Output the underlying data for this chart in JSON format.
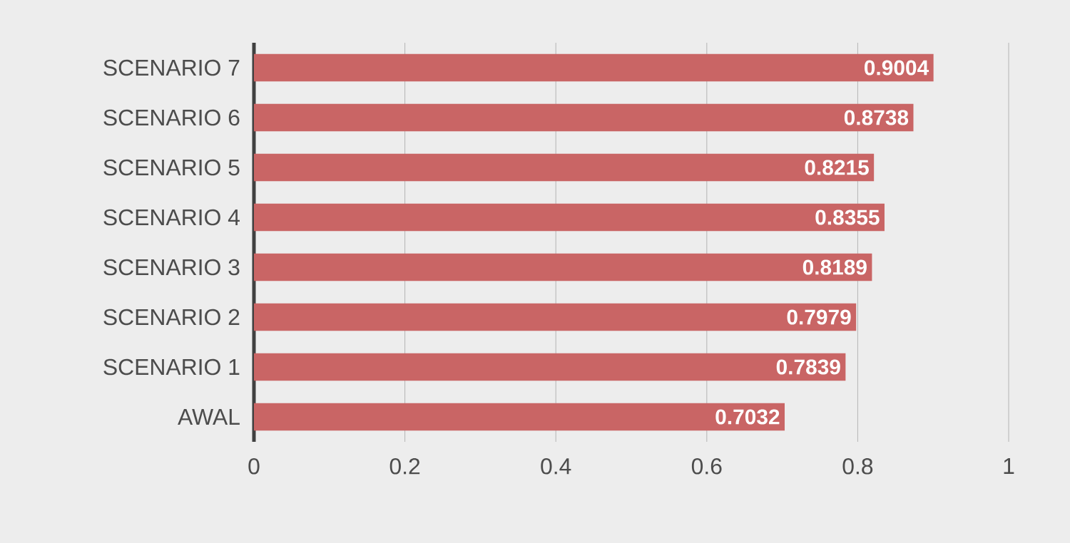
{
  "chart_data": {
    "type": "bar",
    "orientation": "horizontal",
    "categories": [
      "SCENARIO 7",
      "SCENARIO 6",
      "SCENARIO 5",
      "SCENARIO 4",
      "SCENARIO 3",
      "SCENARIO 2",
      "SCENARIO 1",
      "AWAL"
    ],
    "values": [
      0.9004,
      0.8738,
      0.8215,
      0.8355,
      0.8189,
      0.7979,
      0.7839,
      0.7032
    ],
    "color": "#c96565",
    "xlim": [
      0,
      1
    ],
    "xticks": [
      0,
      0.2,
      0.4,
      0.6,
      0.8,
      1
    ],
    "grid": "x",
    "data_labels": true
  }
}
